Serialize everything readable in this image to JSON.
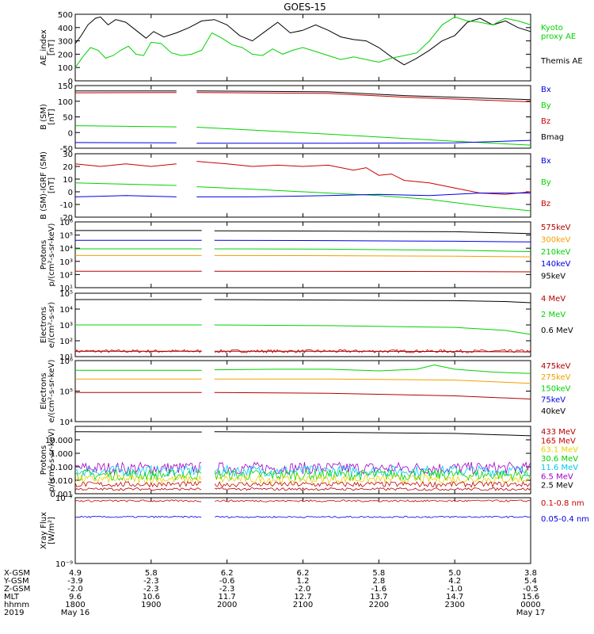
{
  "title": "GOES-15",
  "colors": {
    "black": "#000000",
    "red": "#c80000",
    "green": "#00d200",
    "blue": "#0000e6",
    "orange": "#f0a000",
    "gold": "#e6d200",
    "cyan": "#00c8f0",
    "purple": "#a000c8",
    "brown": "#b40000"
  },
  "chart_data": [
    {
      "type": "line",
      "id": "ae",
      "ylabel": [
        "AE_index",
        "[nT]"
      ],
      "ylim": [
        0,
        500
      ],
      "yticks": [
        "0",
        "100",
        "200",
        "300",
        "400",
        "500"
      ],
      "yticks_v": [
        0,
        100,
        200,
        300,
        400,
        500
      ],
      "legend": [
        {
          "text": "Kyoto",
          "color": "green"
        },
        {
          "text": "proxy AE",
          "color": "green"
        },
        {
          "text": "Themis AE",
          "color": "black"
        }
      ],
      "series": [
        {
          "name": "Themis AE",
          "color": "black",
          "x": [
            0,
            2,
            5,
            8,
            10,
            13,
            16,
            20,
            24,
            28,
            31,
            35,
            40,
            45,
            50,
            55,
            60,
            65,
            70,
            75,
            80,
            85,
            90,
            95,
            100,
            105,
            110,
            115,
            120,
            125,
            130,
            135,
            140,
            145,
            150,
            155,
            160,
            165,
            170,
            175,
            180
          ],
          "y": [
            280,
            330,
            420,
            470,
            480,
            420,
            460,
            440,
            380,
            320,
            370,
            330,
            360,
            400,
            450,
            460,
            420,
            340,
            300,
            370,
            440,
            360,
            380,
            420,
            380,
            330,
            310,
            300,
            250,
            180,
            120,
            170,
            230,
            300,
            340,
            440,
            470,
            420,
            450,
            400,
            370
          ]
        },
        {
          "name": "Kyoto proxy AE",
          "color": "green",
          "x": [
            0,
            3,
            6,
            9,
            12,
            15,
            18,
            21,
            24,
            27,
            30,
            34,
            38,
            42,
            46,
            50,
            54,
            58,
            62,
            66,
            70,
            74,
            78,
            82,
            86,
            90,
            95,
            100,
            105,
            110,
            115,
            120,
            125,
            130,
            135,
            140,
            145,
            150,
            155,
            160,
            165,
            170,
            175,
            180
          ],
          "y": [
            100,
            180,
            250,
            230,
            170,
            190,
            230,
            260,
            200,
            190,
            290,
            280,
            210,
            190,
            200,
            230,
            360,
            320,
            270,
            250,
            200,
            190,
            240,
            200,
            230,
            250,
            220,
            190,
            160,
            180,
            160,
            140,
            170,
            190,
            210,
            300,
            420,
            480,
            450,
            440,
            420,
            470,
            450,
            420
          ]
        }
      ]
    },
    {
      "type": "line",
      "id": "b_sm",
      "ylabel": [
        "B (SM)",
        "[nT]"
      ],
      "ylim": [
        -50,
        150
      ],
      "yticks": [
        "-50",
        "0",
        "50",
        "100",
        "150"
      ],
      "yticks_v": [
        -50,
        0,
        50,
        100,
        150
      ],
      "legend": [
        {
          "text": "Bx",
          "color": "blue"
        },
        {
          "text": "By",
          "color": "green"
        },
        {
          "text": "Bz",
          "color": "red"
        },
        {
          "text": "Bmag",
          "color": "black"
        }
      ],
      "series": [
        {
          "name": "Bmag",
          "color": "black",
          "x": [
            0,
            40,
            44,
            48,
            100,
            130,
            180
          ],
          "y": [
            133,
            133,
            null,
            133,
            130,
            118,
            105
          ]
        },
        {
          "name": "Bz",
          "color": "red",
          "x": [
            0,
            40,
            44,
            48,
            100,
            130,
            180
          ],
          "y": [
            127,
            128,
            null,
            128,
            125,
            113,
            98
          ]
        },
        {
          "name": "By",
          "color": "green",
          "x": [
            0,
            40,
            44,
            48,
            100,
            150,
            180
          ],
          "y": [
            22,
            18,
            null,
            17,
            -5,
            -28,
            -40
          ]
        },
        {
          "name": "Bx",
          "color": "blue",
          "x": [
            0,
            40,
            44,
            48,
            100,
            150,
            180
          ],
          "y": [
            -32,
            -33,
            null,
            -34,
            -34,
            -33,
            -25
          ]
        }
      ]
    },
    {
      "type": "line",
      "id": "b_igrf",
      "ylabel": [
        "B (SM)-IGRF (SM)",
        "[nT]"
      ],
      "ylim": [
        -20,
        30
      ],
      "yticks": [
        "-20",
        "-10",
        "0",
        "10",
        "20",
        "30"
      ],
      "yticks_v": [
        -20,
        -10,
        0,
        10,
        20,
        30
      ],
      "legend": [
        {
          "text": "Bx",
          "color": "blue"
        },
        {
          "text": "By",
          "color": "green"
        },
        {
          "text": "Bz",
          "color": "red"
        }
      ],
      "series": [
        {
          "name": "Bz",
          "color": "red",
          "x": [
            0,
            10,
            20,
            30,
            40,
            44,
            48,
            60,
            70,
            80,
            90,
            100,
            110,
            115,
            120,
            125,
            130,
            140,
            150,
            160,
            170,
            180
          ],
          "y": [
            22,
            20,
            22,
            20,
            22,
            null,
            24,
            22,
            20,
            21,
            20,
            21,
            17,
            19,
            13,
            14,
            9,
            7,
            3,
            -1,
            -2,
            0
          ]
        },
        {
          "name": "By",
          "color": "green",
          "x": [
            0,
            20,
            40,
            44,
            48,
            70,
            100,
            120,
            140,
            160,
            180
          ],
          "y": [
            7,
            6,
            5,
            null,
            4,
            2,
            -1,
            -3,
            -6,
            -11,
            -15
          ]
        },
        {
          "name": "Bx",
          "color": "blue",
          "x": [
            0,
            20,
            40,
            44,
            48,
            70,
            100,
            120,
            140,
            160,
            180
          ],
          "y": [
            -4,
            -3,
            -4,
            null,
            -4,
            -4,
            -3,
            -2,
            -3,
            -1,
            -1
          ]
        }
      ]
    },
    {
      "type": "line",
      "id": "protons_lo",
      "log": true,
      "ylabel": [
        "Protons",
        "p/(cm²-s-sr-keV)"
      ],
      "ylim": [
        10,
        1000000
      ],
      "yticks": [
        "10¹",
        "10²",
        "10³",
        "10⁴",
        "10⁵",
        "10⁶"
      ],
      "yticks_v": [
        10,
        100,
        1000,
        10000,
        100000,
        1000000
      ],
      "legend": [
        {
          "text": "575keV",
          "color": "brown"
        },
        {
          "text": "300keV",
          "color": "orange"
        },
        {
          "text": "210keV",
          "color": "green"
        },
        {
          "text": "140keV",
          "color": "blue"
        },
        {
          "text": "95keV",
          "color": "black"
        }
      ],
      "series": [
        {
          "name": "95keV",
          "color": "black",
          "x": [
            0,
            50,
            52,
            55,
            100,
            150,
            180
          ],
          "y": [
            220000,
            220000,
            null,
            210000,
            200000,
            180000,
            130000
          ]
        },
        {
          "name": "140keV",
          "color": "blue",
          "x": [
            0,
            50,
            52,
            55,
            100,
            150,
            180
          ],
          "y": [
            40000,
            40000,
            null,
            40000,
            38000,
            34000,
            30000
          ]
        },
        {
          "name": "210keV",
          "color": "green",
          "x": [
            0,
            50,
            52,
            55,
            100,
            150,
            180
          ],
          "y": [
            9000,
            9000,
            null,
            9000,
            8500,
            7000,
            5500
          ]
        },
        {
          "name": "300keV",
          "color": "orange",
          "x": [
            0,
            50,
            52,
            55,
            100,
            150,
            180
          ],
          "y": [
            2800,
            2800,
            null,
            2800,
            2700,
            2500,
            2200
          ]
        },
        {
          "name": "575keV",
          "color": "brown",
          "x": [
            0,
            50,
            52,
            55,
            100,
            150,
            180
          ],
          "y": [
            180,
            180,
            null,
            180,
            175,
            170,
            160
          ]
        }
      ]
    },
    {
      "type": "line",
      "id": "electrons_mev",
      "log": true,
      "ylabel": [
        "Electrons",
        "e/(cm²-s-sr)"
      ],
      "ylim": [
        10,
        100000
      ],
      "yticks": [
        "10¹",
        "10²",
        "10³",
        "10⁴",
        "10⁵"
      ],
      "yticks_v": [
        10,
        100,
        1000,
        10000,
        100000
      ],
      "legend": [
        {
          "text": "4 MeV",
          "color": "brown"
        },
        {
          "text": "2 MeV",
          "color": "green"
        },
        {
          "text": "0.6 MeV",
          "color": "black"
        }
      ],
      "series": [
        {
          "name": "0.6 MeV",
          "color": "black",
          "x": [
            0,
            50,
            52,
            55,
            100,
            150,
            170,
            180
          ],
          "y": [
            40000,
            40000,
            null,
            40000,
            37000,
            34000,
            30000,
            25000
          ]
        },
        {
          "name": "2 MeV",
          "color": "green",
          "x": [
            0,
            50,
            52,
            55,
            100,
            150,
            170,
            180
          ],
          "y": [
            1000,
            1000,
            null,
            1000,
            900,
            700,
            450,
            250
          ]
        },
        {
          "name": "4 MeV",
          "color": "brown",
          "x": [
            0,
            50,
            52,
            55,
            100,
            150,
            180
          ],
          "y": [
            22,
            22,
            null,
            22,
            22,
            21,
            20
          ]
        }
      ]
    },
    {
      "type": "line",
      "id": "electrons_kev",
      "log": true,
      "ylabel": [
        "Electrons",
        "e/(cm²-s-sr-keV)"
      ],
      "ylim": [
        10000,
        1000000
      ],
      "yticks": [
        "10⁴",
        "10⁵",
        "10⁶"
      ],
      "yticks_v": [
        10000,
        100000,
        1000000
      ],
      "legend": [
        {
          "text": "475keV",
          "color": "brown"
        },
        {
          "text": "275keV",
          "color": "orange"
        },
        {
          "text": "150keV",
          "color": "green"
        },
        {
          "text": "75keV",
          "color": "blue"
        },
        {
          "text": "40keV",
          "color": "black"
        }
      ],
      "series": [
        {
          "name": "150keV",
          "color": "green",
          "x": [
            0,
            50,
            52,
            55,
            80,
            100,
            120,
            135,
            142,
            150,
            165,
            180
          ],
          "y": [
            480000,
            480000,
            null,
            500000,
            520000,
            520000,
            460000,
            520000,
            720000,
            520000,
            420000,
            380000
          ]
        },
        {
          "name": "275keV",
          "color": "orange",
          "x": [
            0,
            50,
            52,
            55,
            100,
            150,
            180
          ],
          "y": [
            250000,
            250000,
            null,
            250000,
            250000,
            230000,
            180000
          ]
        },
        {
          "name": "475keV",
          "color": "brown",
          "x": [
            0,
            50,
            52,
            55,
            100,
            150,
            180
          ],
          "y": [
            90000,
            90000,
            null,
            90000,
            85000,
            70000,
            55000
          ]
        }
      ]
    },
    {
      "type": "line",
      "id": "protons_mev",
      "log": true,
      "ylabel": [
        "Protons",
        "p/(cm²-s-sr-keV)"
      ],
      "ylim": [
        0.001,
        100
      ],
      "yticks": [
        "0.001",
        "0.010",
        "0.100",
        "1.000",
        "10.000"
      ],
      "yticks_v": [
        0.001,
        0.01,
        0.1,
        1,
        10
      ],
      "legend": [
        {
          "text": "433 MeV",
          "color": "brown"
        },
        {
          "text": "165 MeV",
          "color": "red"
        },
        {
          "text": "63.1 MeV",
          "color": "gold"
        },
        {
          "text": "30.6 MeV",
          "color": "green"
        },
        {
          "text": "11.6 MeV",
          "color": "cyan"
        },
        {
          "text": "6.5 MeV",
          "color": "purple"
        },
        {
          "text": "2.5 MeV",
          "color": "black"
        }
      ],
      "series": [
        {
          "name": "2.5 MeV",
          "color": "black",
          "x": [
            0,
            50,
            52,
            55,
            100,
            150,
            180
          ],
          "y": [
            40,
            38,
            null,
            40,
            36,
            30,
            20
          ]
        }
      ]
    },
    {
      "type": "line",
      "id": "xray",
      "log": true,
      "ylabel": [
        "Xray Flux",
        "[W/m²]"
      ],
      "ylim": [
        1e-09,
        1e-07
      ],
      "yticks": [
        "10⁻⁹",
        "10⁻⁷"
      ],
      "yticks_v": [
        1e-09,
        1e-07
      ],
      "legend": [
        {
          "text": "0.1-0.8 nm",
          "color": "red"
        },
        {
          "text": "0.05-0.4 nm",
          "color": "blue"
        }
      ],
      "series": []
    }
  ],
  "xaxis": {
    "labels": [
      "X-GSM",
      "Y-GSM",
      "Z-GSM",
      "MLT",
      "hhmm",
      "2019"
    ],
    "cols": [
      {
        "rows": [
          "4.9",
          "-3.9",
          "-2.0",
          "9.6",
          "1800",
          "May 16"
        ]
      },
      {
        "rows": [
          "5.8",
          "-2.3",
          "-2.3",
          "10.6",
          "1900",
          ""
        ]
      },
      {
        "rows": [
          "6.2",
          "-0.6",
          "-2.3",
          "11.7",
          "2000",
          ""
        ]
      },
      {
        "rows": [
          "6.2",
          "1.2",
          "-2.0",
          "12.7",
          "2100",
          ""
        ]
      },
      {
        "rows": [
          "5.8",
          "2.8",
          "-1.6",
          "13.7",
          "2200",
          ""
        ]
      },
      {
        "rows": [
          "5.0",
          "4.2",
          "-1.0",
          "14.7",
          "2300",
          ""
        ]
      },
      {
        "rows": [
          "3.8",
          "5.4",
          "-0.5",
          "15.6",
          "0000",
          "May 17"
        ]
      }
    ]
  }
}
